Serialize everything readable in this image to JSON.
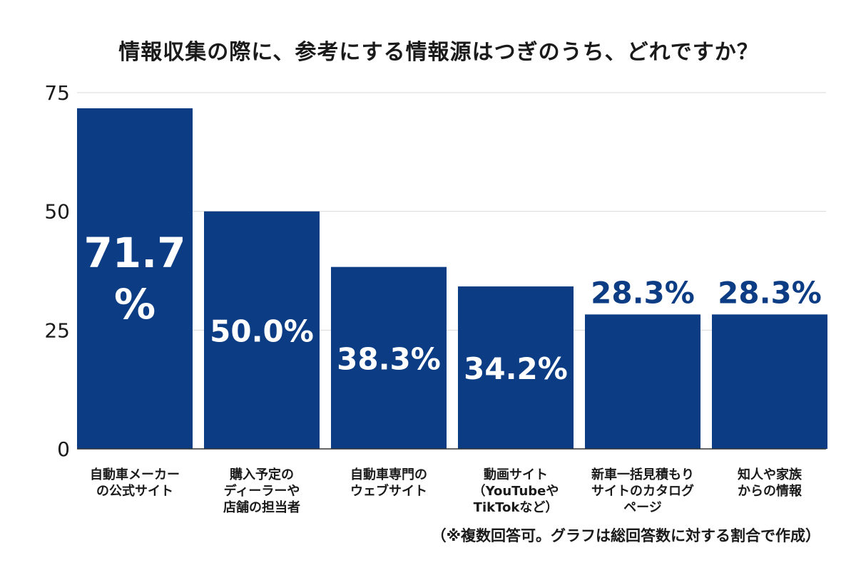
{
  "chart_data": {
    "type": "bar",
    "title": "情報収集の際に、参考にする情報源はつぎのうち、どれですか？",
    "categories": [
      [
        "自動車メーカー",
        "の公式サイト"
      ],
      [
        "購入予定の",
        "ディーラーや",
        "店舗の担当者"
      ],
      [
        "自動車専門の",
        "ウェブサイト"
      ],
      [
        "動画サイト",
        "（YouTubeや",
        "TikTokなど）"
      ],
      [
        "新車一括見積もり",
        "サイトのカタログ",
        "ページ"
      ],
      [
        "知人や家族",
        "からの情報"
      ]
    ],
    "values": [
      71.7,
      50.0,
      38.3,
      34.2,
      28.3,
      28.3
    ],
    "value_labels": [
      [
        "71.7",
        "%"
      ],
      [
        "50.0%"
      ],
      [
        "38.3%"
      ],
      [
        "34.2%"
      ],
      [
        "28.3%"
      ],
      [
        "28.3%"
      ]
    ],
    "label_position": [
      "inside",
      "inside",
      "inside",
      "inside",
      "above",
      "above"
    ],
    "ylim": [
      0,
      75
    ],
    "yticks": [
      "0",
      "25",
      "50",
      "75"
    ],
    "grid": true,
    "xlabel": "",
    "ylabel": "",
    "colors": {
      "bar": "#0b3c84",
      "label_inside": "#ffffff",
      "label_outside": "#0b3c84",
      "grid": "#d9d9d9",
      "axis": "#333333"
    }
  },
  "note": "（※複数回答可。グラフは総回答数に対する割合で作成）"
}
